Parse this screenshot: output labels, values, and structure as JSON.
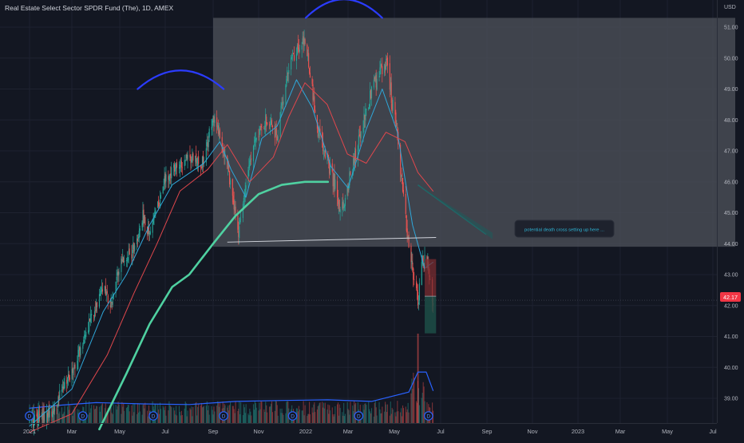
{
  "header": {
    "symbol_title": "Real Estate Select Sector SPDR Fund (The), 1D, AMEX"
  },
  "axis": {
    "currency": "USD"
  },
  "annotation": {
    "text": "potential death cross setting up here ..."
  },
  "price_label": {
    "value": "42.17",
    "color": "#f23645"
  },
  "colors": {
    "background": "#131722",
    "up": "#26a69a",
    "down": "#ef5350",
    "ma_fast": "#2fa7d9",
    "ma_slow": "#e0474c",
    "ma_long": "#4fd1a1",
    "volume_ma": "#2962ff",
    "arc": "#2b3cff",
    "shaded_box": "#4c5058"
  },
  "chart_data": {
    "type": "candlestick",
    "title": "Real Estate Select Sector SPDR Fund (The), 1D, AMEX",
    "x_tick_labels": [
      "2021",
      "Mar",
      "May",
      "Jul",
      "Sep",
      "Nov",
      "2022",
      "Mar",
      "May",
      "Jul",
      "Sep",
      "Nov",
      "2023",
      "Mar",
      "May",
      "Jul"
    ],
    "y_tick_labels": [
      "39.00",
      "40.00",
      "41.00",
      "42.00",
      "43.00",
      "44.00",
      "45.00",
      "46.00",
      "47.00",
      "48.00",
      "49.00",
      "50.00",
      "51.00"
    ],
    "ylim": [
      38.5,
      51.3
    ],
    "close_path": [
      [
        "2021-01-01",
        38.2
      ],
      [
        "2021-02-01",
        38.6
      ],
      [
        "2021-03-01",
        39.8
      ],
      [
        "2021-03-20",
        41.2
      ],
      [
        "2021-04-10",
        42.6
      ],
      [
        "2021-04-20",
        42.0
      ],
      [
        "2021-05-01",
        43.3
      ],
      [
        "2021-05-20",
        43.8
      ],
      [
        "2021-06-01",
        44.9
      ],
      [
        "2021-06-10",
        44.3
      ],
      [
        "2021-07-01",
        46.1
      ],
      [
        "2021-08-01",
        46.8
      ],
      [
        "2021-08-20",
        46.6
      ],
      [
        "2021-09-01",
        48.2
      ],
      [
        "2021-09-20",
        46.5
      ],
      [
        "2021-10-05",
        44.4
      ],
      [
        "2021-10-20",
        46.8
      ],
      [
        "2021-11-10",
        48.0
      ],
      [
        "2021-11-25",
        47.5
      ],
      [
        "2021-12-10",
        49.8
      ],
      [
        "2021-12-31",
        50.6
      ],
      [
        "2022-01-20",
        47.4
      ],
      [
        "2022-02-05",
        46.4
      ],
      [
        "2022-02-20",
        45.0
      ],
      [
        "2022-03-05",
        46.3
      ],
      [
        "2022-03-20",
        47.9
      ],
      [
        "2022-04-05",
        49.2
      ],
      [
        "2022-04-20",
        49.9
      ],
      [
        "2022-05-05",
        47.4
      ],
      [
        "2022-05-20",
        43.9
      ],
      [
        "2022-06-01",
        42.1
      ],
      [
        "2022-06-08",
        43.6
      ],
      [
        "2022-06-17",
        42.9
      ],
      [
        "2022-06-21",
        42.17
      ]
    ],
    "series": [
      {
        "type": "line",
        "points": [
          [
            "2021-01-01",
            38.1
          ],
          [
            "2021-03-01",
            39.3
          ],
          [
            "2021-04-10",
            41.8
          ],
          [
            "2021-05-10",
            43.0
          ],
          [
            "2021-06-10",
            44.6
          ],
          [
            "2021-07-10",
            45.9
          ],
          [
            "2021-08-20",
            46.6
          ],
          [
            "2021-09-10",
            47.3
          ],
          [
            "2021-09-25",
            46.4
          ],
          [
            "2021-10-15",
            45.5
          ],
          [
            "2021-11-05",
            47.4
          ],
          [
            "2021-11-25",
            47.8
          ],
          [
            "2021-12-20",
            49.3
          ],
          [
            "2022-01-10",
            48.4
          ],
          [
            "2022-02-05",
            46.5
          ],
          [
            "2022-03-01",
            45.8
          ],
          [
            "2022-03-25",
            47.7
          ],
          [
            "2022-04-15",
            49.0
          ],
          [
            "2022-05-05",
            47.6
          ],
          [
            "2022-05-25",
            44.6
          ],
          [
            "2022-06-10",
            43.2
          ],
          [
            "2022-06-21",
            43.4
          ]
        ]
      },
      {
        "type": "line",
        "points": [
          [
            "2021-01-01",
            37.9
          ],
          [
            "2021-03-01",
            38.5
          ],
          [
            "2021-04-15",
            40.4
          ],
          [
            "2021-05-20",
            42.4
          ],
          [
            "2021-06-20",
            44.0
          ],
          [
            "2021-07-20",
            45.7
          ],
          [
            "2021-08-25",
            46.4
          ],
          [
            "2021-09-20",
            47.2
          ],
          [
            "2021-10-20",
            46.0
          ],
          [
            "2021-11-20",
            46.8
          ],
          [
            "2021-12-10",
            48.1
          ],
          [
            "2021-12-31",
            49.2
          ],
          [
            "2022-01-31",
            48.5
          ],
          [
            "2022-02-28",
            46.9
          ],
          [
            "2022-03-25",
            46.6
          ],
          [
            "2022-04-20",
            47.6
          ],
          [
            "2022-05-15",
            47.3
          ],
          [
            "2022-06-01",
            46.3
          ],
          [
            "2022-06-21",
            45.7
          ]
        ]
      },
      {
        "type": "line",
        "points": [
          [
            "2021-04-05",
            38.0
          ],
          [
            "2021-05-10",
            39.8
          ],
          [
            "2021-06-10",
            41.4
          ],
          [
            "2021-07-10",
            42.6
          ],
          [
            "2021-08-01",
            43.0
          ],
          [
            "2021-09-01",
            44.0
          ],
          [
            "2021-10-01",
            44.9
          ],
          [
            "2021-11-01",
            45.6
          ],
          [
            "2021-12-01",
            45.9
          ],
          [
            "2021-12-31",
            46.0
          ],
          [
            "2022-02-01",
            46.0
          ]
        ]
      },
      {
        "type": "line",
        "points": [
          [
            "2021-01-01",
            38.68
          ],
          [
            "2021-02-15",
            38.78
          ],
          [
            "2021-04-01",
            38.86
          ],
          [
            "2021-06-01",
            38.82
          ],
          [
            "2021-08-01",
            38.8
          ],
          [
            "2021-10-01",
            38.9
          ],
          [
            "2021-12-01",
            38.93
          ],
          [
            "2022-02-01",
            38.95
          ],
          [
            "2022-04-01",
            38.9
          ],
          [
            "2022-05-20",
            39.2
          ],
          [
            "2022-06-01",
            39.85
          ],
          [
            "2022-06-12",
            39.85
          ],
          [
            "2022-06-21",
            39.25
          ]
        ]
      }
    ],
    "shaded_box": {
      "x_start": "2021-09-01",
      "x_end": "2023-07-31",
      "y_low": 43.9,
      "y_high": 51.3
    },
    "neckline": {
      "x_start": "2021-09-20",
      "x_end": "2022-06-25",
      "y_start": 44.05,
      "y_end": 44.2
    },
    "projection_line": {
      "x_start": "2022-06-01",
      "x_end": "2022-08-31",
      "y_start": 45.9,
      "y_end": 44.3
    },
    "position_tool": {
      "x_start": "2022-06-10",
      "x_end": "2022-06-25",
      "target": 41.1,
      "entry": 42.3,
      "stop": 43.5
    },
    "arcs": [
      {
        "x_start": "2021-05-25",
        "x_end": "2021-09-15",
        "y_edge": 49.0,
        "y_peak": 49.6
      },
      {
        "x_start": "2022-01-01",
        "x_end": "2022-04-15",
        "y_edge": 51.3,
        "y_peak": 51.9
      }
    ],
    "event_markers": [
      "2021-01-01",
      "2021-03-15",
      "2021-06-15",
      "2021-09-15",
      "2021-12-15",
      "2022-03-15",
      "2022-06-15"
    ],
    "event_marker_label": "D"
  }
}
